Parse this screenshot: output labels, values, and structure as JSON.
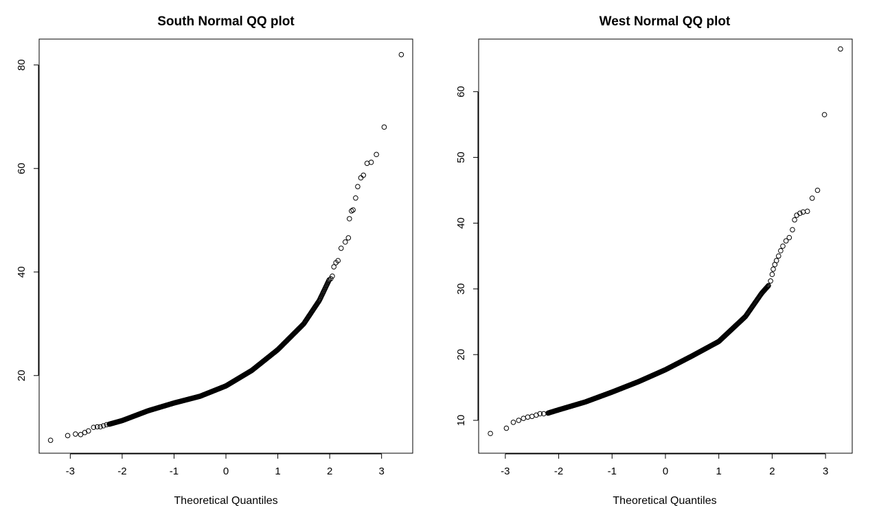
{
  "chart_data": [
    {
      "type": "scatter",
      "title": "South Normal QQ plot",
      "xlabel": "Theoretical Quantiles",
      "ylabel": "",
      "xlim": [
        -3.6,
        3.6
      ],
      "ylim": [
        5,
        85
      ],
      "xticks": [
        -3,
        -2,
        -1,
        0,
        1,
        2,
        3
      ],
      "yticks": [
        20,
        40,
        60,
        80
      ],
      "grid": false,
      "legend": "none",
      "marker": "open-circle",
      "color": "#000000",
      "tail_points": [
        [
          -3.38,
          7.5
        ],
        [
          -3.05,
          8.4
        ],
        [
          -2.9,
          8.7
        ],
        [
          -2.8,
          8.6
        ],
        [
          -2.72,
          9.0
        ],
        [
          -2.65,
          9.3
        ],
        [
          -2.55,
          10.0
        ],
        [
          -2.48,
          10.1
        ],
        [
          -2.42,
          10.1
        ],
        [
          -2.36,
          10.3
        ],
        [
          -2.3,
          10.5
        ],
        [
          -2.25,
          10.6
        ],
        [
          2.02,
          38.7
        ],
        [
          2.05,
          39.2
        ],
        [
          2.08,
          41.0
        ],
        [
          2.12,
          41.8
        ],
        [
          2.16,
          42.2
        ],
        [
          2.22,
          44.6
        ],
        [
          2.3,
          45.8
        ],
        [
          2.36,
          46.6
        ],
        [
          2.38,
          50.3
        ],
        [
          2.42,
          51.8
        ],
        [
          2.45,
          52.0
        ],
        [
          2.5,
          54.3
        ],
        [
          2.54,
          56.5
        ],
        [
          2.6,
          58.2
        ],
        [
          2.65,
          58.7
        ],
        [
          2.72,
          61.0
        ],
        [
          2.8,
          61.2
        ],
        [
          2.9,
          62.7
        ],
        [
          3.05,
          68.0
        ],
        [
          3.38,
          82.0
        ]
      ],
      "body_curve": {
        "x": [
          -2.25,
          -2.0,
          -1.5,
          -1.0,
          -0.5,
          0.0,
          0.5,
          1.0,
          1.5,
          1.8,
          2.0
        ],
        "y": [
          10.6,
          11.3,
          13.2,
          14.7,
          16.0,
          18.0,
          21.0,
          25.0,
          30.0,
          34.5,
          38.7
        ]
      },
      "body_point_count": 420
    },
    {
      "type": "scatter",
      "title": "West Normal QQ plot",
      "xlabel": "Theoretical Quantiles",
      "ylabel": "",
      "xlim": [
        -3.5,
        3.5
      ],
      "ylim": [
        5,
        68
      ],
      "xticks": [
        -3,
        -2,
        -1,
        0,
        1,
        2,
        3
      ],
      "yticks": [
        10,
        20,
        30,
        40,
        50,
        60
      ],
      "grid": false,
      "legend": "none",
      "marker": "open-circle",
      "color": "#000000",
      "tail_points": [
        [
          -3.28,
          8.0
        ],
        [
          -2.98,
          8.8
        ],
        [
          -2.85,
          9.7
        ],
        [
          -2.75,
          10.0
        ],
        [
          -2.66,
          10.3
        ],
        [
          -2.58,
          10.5
        ],
        [
          -2.5,
          10.6
        ],
        [
          -2.42,
          10.8
        ],
        [
          -2.35,
          11.0
        ],
        [
          -2.28,
          11.0
        ],
        [
          -2.2,
          11.1
        ],
        [
          1.93,
          30.5
        ],
        [
          1.97,
          31.2
        ],
        [
          2.0,
          32.2
        ],
        [
          2.02,
          33.0
        ],
        [
          2.05,
          33.7
        ],
        [
          2.08,
          34.3
        ],
        [
          2.12,
          35.0
        ],
        [
          2.16,
          35.8
        ],
        [
          2.2,
          36.5
        ],
        [
          2.26,
          37.3
        ],
        [
          2.32,
          37.8
        ],
        [
          2.38,
          39.0
        ],
        [
          2.42,
          40.5
        ],
        [
          2.46,
          41.2
        ],
        [
          2.52,
          41.5
        ],
        [
          2.58,
          41.7
        ],
        [
          2.66,
          41.8
        ],
        [
          2.75,
          43.8
        ],
        [
          2.85,
          45.0
        ],
        [
          2.98,
          56.5
        ],
        [
          3.28,
          66.5
        ]
      ],
      "body_curve": {
        "x": [
          -2.2,
          -2.0,
          -1.5,
          -1.0,
          -0.5,
          0.0,
          0.5,
          1.0,
          1.5,
          1.8,
          1.93
        ],
        "y": [
          11.1,
          11.6,
          12.8,
          14.3,
          15.9,
          17.7,
          19.8,
          22.0,
          25.8,
          29.3,
          30.5
        ]
      },
      "body_point_count": 420
    }
  ]
}
